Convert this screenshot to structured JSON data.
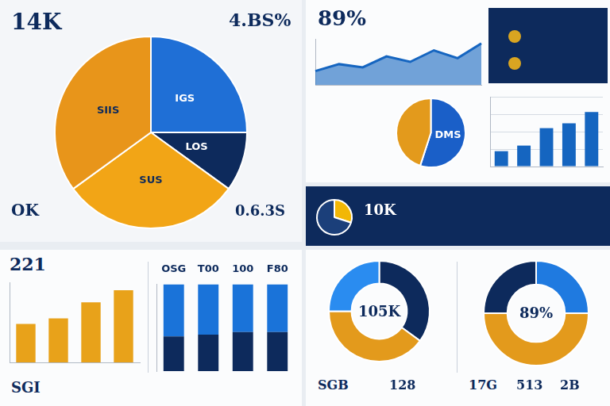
{
  "chart_data": [
    {
      "type": "pie",
      "title": "14K",
      "subtitle": "4.BS%",
      "categories": [
        "IGS",
        "LOS",
        "SUS",
        "SIIS"
      ],
      "values": [
        25,
        10,
        30,
        35
      ],
      "colors": [
        "#1f6fd6",
        "#0d2a5c",
        "#f2a516",
        "#e8951a"
      ],
      "annotations": [
        "OK",
        "0.6.3S"
      ]
    },
    {
      "type": "line",
      "title": "89%",
      "categories": [
        null,
        null,
        null,
        null,
        null,
        null,
        null,
        null
      ],
      "values": [
        30,
        45,
        38,
        62,
        50,
        75,
        58,
        90
      ],
      "color": "#1565c0",
      "ylim": [
        0,
        100
      ],
      "yticks": [
        0,
        50,
        100
      ],
      "grid": false,
      "tick_labels": false
    },
    {
      "type": "pie",
      "categories": [
        "DMS",
        null
      ],
      "values": [
        55,
        45
      ],
      "colors": [
        "#1a5fc8",
        "#e39a1c"
      ]
    },
    {
      "type": "bar",
      "categories": [
        null,
        null,
        null,
        null,
        null
      ],
      "values": [
        22,
        30,
        55,
        62,
        78
      ],
      "color": "#1565c0",
      "ylim": [
        0,
        100
      ],
      "yticks": [
        0,
        25,
        50,
        75,
        100
      ],
      "grid": true,
      "tick_labels": false
    },
    {
      "type": "pie",
      "title": "10K",
      "values": [
        30,
        70
      ],
      "colors": [
        "#f2b705",
        "#1b3f7a"
      ]
    },
    {
      "type": "bar",
      "title": "221",
      "categories": [
        null,
        null,
        null,
        null
      ],
      "values": [
        48,
        55,
        75,
        90
      ],
      "color": "#e8a21a",
      "ylim": [
        0,
        100
      ],
      "yticks": [
        0,
        25,
        50,
        75,
        100
      ],
      "grid": false,
      "tick_labels": false,
      "annotations": [
        "SGI"
      ]
    },
    {
      "type": "bar",
      "categories": [
        "OSG",
        "T00",
        "100",
        "F80"
      ],
      "stacked": true,
      "series": [
        {
          "color": "#0d2a5c",
          "values": [
            40,
            42,
            45,
            45
          ]
        },
        {
          "color": "#1a73d9",
          "values": [
            60,
            58,
            55,
            55
          ]
        }
      ],
      "ylim": [
        0,
        100
      ],
      "yticks": [
        0,
        25,
        50,
        75,
        100
      ],
      "grid": false,
      "tick_labels": "x"
    },
    {
      "type": "doughnut",
      "title": "105K",
      "values": [
        35,
        40,
        25
      ],
      "colors": [
        "#0d2a5c",
        "#e39a1c",
        "#2a8cf0"
      ],
      "annotations": [
        "SGB",
        "128"
      ]
    },
    {
      "type": "doughnut",
      "title": "89%",
      "values": [
        25,
        50,
        25
      ],
      "colors": [
        "#1f7ae0",
        "#e39a1c",
        "#0d2a5c"
      ],
      "annotations": [
        "17G",
        "513",
        "2B"
      ]
    }
  ]
}
